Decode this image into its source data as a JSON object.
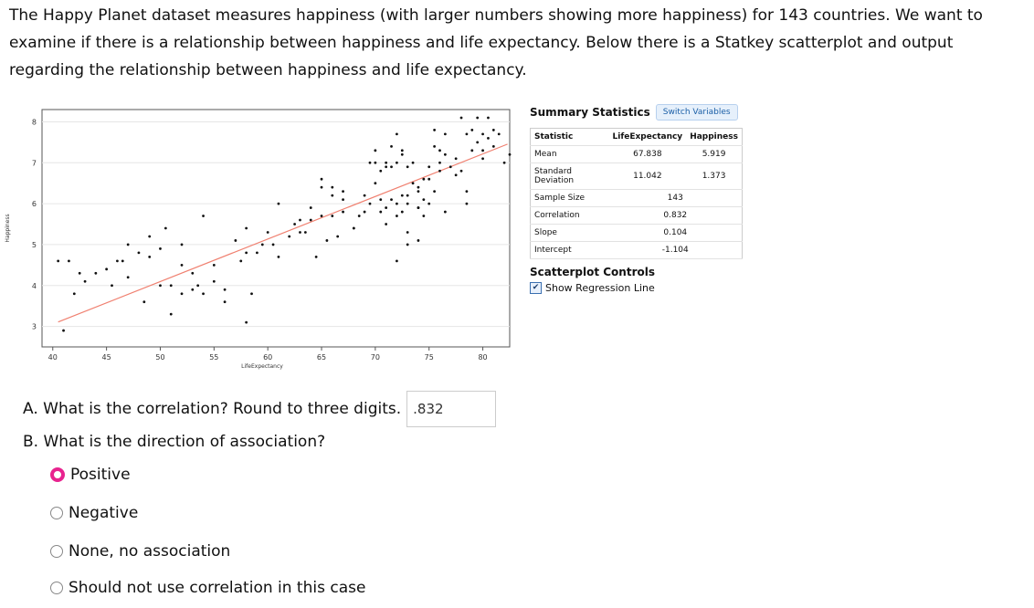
{
  "intro": "The Happy Planet dataset measures happiness (with larger numbers showing more happiness) for 143 countries. We want to examine if there is a relationship between happiness and life expectancy. Below there is a Statkey scatterplot and output regarding the relationship between happiness and life expectancy.",
  "stats": {
    "title": "Summary Statistics",
    "switch_label": "Switch Variables",
    "headers": [
      "Statistic",
      "LifeExpectancy",
      "Happiness"
    ],
    "rows": [
      {
        "label": "Mean",
        "a": "67.838",
        "b": "5.919"
      },
      {
        "label": "Standard Deviation",
        "a": "11.042",
        "b": "1.373"
      },
      {
        "label": "Sample Size",
        "a": "143",
        "b": ""
      },
      {
        "label": "Correlation",
        "a": "0.832",
        "b": ""
      },
      {
        "label": "Slope",
        "a": "0.104",
        "b": ""
      },
      {
        "label": "Intercept",
        "a": "-1.104",
        "b": ""
      }
    ]
  },
  "controls": {
    "title": "Scatterplot Controls",
    "show_regression_label": "Show Regression Line",
    "show_regression": true
  },
  "questions": {
    "a_label": "A. What is the correlation? Round to three digits.",
    "a_answer": ".832",
    "b_label": "B. What is the direction of association?",
    "options": [
      "Positive",
      "Negative",
      "None, no association",
      "Should not use correlation in this case"
    ],
    "selected": "Positive"
  },
  "chart_data": {
    "type": "scatter",
    "xlabel": "LifeExpectancy",
    "ylabel": "Happiness",
    "xlim": [
      39,
      82.5
    ],
    "ylim": [
      2.5,
      8.3
    ],
    "xticks": [
      40,
      45,
      50,
      55,
      60,
      65,
      70,
      75,
      80
    ],
    "yticks": [
      3,
      4,
      5,
      6,
      7,
      8
    ],
    "regression": {
      "slope": 0.104,
      "intercept": -1.104,
      "x_range": [
        40.5,
        82.3
      ],
      "color": "#f08070"
    },
    "point_color": "#111111",
    "points": [
      [
        40.5,
        4.6
      ],
      [
        41.5,
        4.6
      ],
      [
        41,
        2.9
      ],
      [
        42,
        3.8
      ],
      [
        43,
        4.1
      ],
      [
        44,
        4.3
      ],
      [
        45,
        4.4
      ],
      [
        45.5,
        4.0
      ],
      [
        46,
        4.6
      ],
      [
        47,
        4.2
      ],
      [
        47,
        5.0
      ],
      [
        48,
        4.8
      ],
      [
        48.5,
        3.6
      ],
      [
        49,
        4.7
      ],
      [
        50,
        4.0
      ],
      [
        50,
        4.9
      ],
      [
        50.5,
        5.4
      ],
      [
        51,
        3.3
      ],
      [
        51,
        4.0
      ],
      [
        52,
        3.8
      ],
      [
        52,
        4.5
      ],
      [
        52,
        5.0
      ],
      [
        53,
        3.9
      ],
      [
        53.5,
        4.0
      ],
      [
        54,
        3.8
      ],
      [
        54,
        5.7
      ],
      [
        55,
        4.1
      ],
      [
        55,
        4.5
      ],
      [
        56,
        3.6
      ],
      [
        56,
        3.9
      ],
      [
        57.5,
        4.6
      ],
      [
        58,
        3.1
      ],
      [
        58,
        4.8
      ],
      [
        58,
        5.4
      ],
      [
        58.5,
        3.8
      ],
      [
        59,
        4.8
      ],
      [
        59.5,
        5.0
      ],
      [
        60,
        5.3
      ],
      [
        61,
        4.7
      ],
      [
        61,
        6.0
      ],
      [
        62,
        5.2
      ],
      [
        63,
        5.3
      ],
      [
        63,
        5.6
      ],
      [
        63.5,
        5.3
      ],
      [
        64,
        5.6
      ],
      [
        64.5,
        4.7
      ],
      [
        65,
        5.7
      ],
      [
        65,
        6.4
      ],
      [
        65,
        6.6
      ],
      [
        65.5,
        5.1
      ],
      [
        66,
        6.2
      ],
      [
        66,
        6.4
      ],
      [
        66,
        5.7
      ],
      [
        66.5,
        5.2
      ],
      [
        67,
        6.3
      ],
      [
        67,
        5.8
      ],
      [
        68,
        5.4
      ],
      [
        68,
        5.4
      ],
      [
        68.5,
        5.7
      ],
      [
        69,
        5.8
      ],
      [
        69,
        6.2
      ],
      [
        69.5,
        6.0
      ],
      [
        70,
        6.5
      ],
      [
        70,
        7.0
      ],
      [
        70.5,
        5.8
      ],
      [
        70.5,
        6.1
      ],
      [
        70.5,
        6.8
      ],
      [
        71,
        5.9
      ],
      [
        71,
        6.9
      ],
      [
        71,
        5.5
      ],
      [
        71.5,
        6.1
      ],
      [
        71.5,
        6.9
      ],
      [
        71.5,
        7.4
      ],
      [
        72,
        7.0
      ],
      [
        72,
        6.0
      ],
      [
        72,
        5.7
      ],
      [
        72,
        4.6
      ],
      [
        72.5,
        6.2
      ],
      [
        72.5,
        5.8
      ],
      [
        72,
        7.7
      ],
      [
        72.5,
        7.2
      ],
      [
        72.5,
        7.3
      ],
      [
        73,
        6.9
      ],
      [
        73,
        6.2
      ],
      [
        73,
        6.0
      ],
      [
        73,
        5.3
      ],
      [
        73,
        5.0
      ],
      [
        73.5,
        6.5
      ],
      [
        73.5,
        7.0
      ],
      [
        74,
        6.4
      ],
      [
        74,
        6.3
      ],
      [
        74,
        5.9
      ],
      [
        74,
        5.9
      ],
      [
        74,
        5.1
      ],
      [
        74.5,
        6.1
      ],
      [
        74.5,
        6.6
      ],
      [
        74.5,
        5.7
      ],
      [
        75,
        6.6
      ],
      [
        75,
        6.9
      ],
      [
        75,
        6.0
      ],
      [
        75.5,
        7.8
      ],
      [
        75.5,
        7.4
      ],
      [
        75.5,
        6.3
      ],
      [
        76,
        7.3
      ],
      [
        76,
        6.8
      ],
      [
        76,
        7.0
      ],
      [
        76.5,
        7.7
      ],
      [
        76.5,
        7.2
      ],
      [
        76.5,
        5.8
      ],
      [
        77,
        6.9
      ],
      [
        77.5,
        7.1
      ],
      [
        77.5,
        6.7
      ],
      [
        78,
        6.8
      ],
      [
        78,
        8.1
      ],
      [
        78.5,
        7.7
      ],
      [
        78.5,
        6.3
      ],
      [
        78.5,
        6.0
      ],
      [
        79,
        7.3
      ],
      [
        79,
        7.8
      ],
      [
        79.5,
        7.5
      ],
      [
        79.5,
        8.1
      ],
      [
        80,
        7.7
      ],
      [
        80,
        7.1
      ],
      [
        80,
        7.3
      ],
      [
        80.5,
        7.6
      ],
      [
        80.5,
        8.1
      ],
      [
        81,
        7.8
      ],
      [
        81,
        7.4
      ],
      [
        81.5,
        7.7
      ],
      [
        82,
        7.0
      ],
      [
        82.5,
        7.2
      ],
      [
        70,
        7.3
      ],
      [
        71,
        7.0
      ],
      [
        69.5,
        7.0
      ],
      [
        67,
        6.1
      ],
      [
        64,
        5.9
      ],
      [
        62.5,
        5.5
      ],
      [
        60.5,
        5.0
      ],
      [
        57,
        5.1
      ],
      [
        49,
        5.2
      ],
      [
        42.5,
        4.3
      ],
      [
        46.5,
        4.6
      ],
      [
        53,
        4.3
      ]
    ]
  }
}
